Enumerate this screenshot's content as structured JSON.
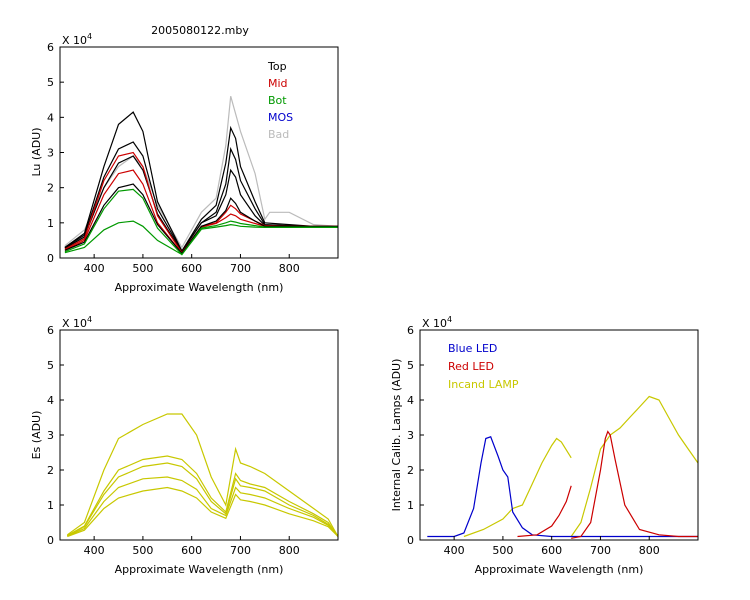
{
  "figure_title": "2005080122.mby",
  "chart_data": [
    {
      "type": "line",
      "id": "lu",
      "title": "",
      "xlabel": "Approximate Wavelength (nm)",
      "ylabel": "Lu (ADU)",
      "exponent_label": "X 10",
      "exponent": "4",
      "xlim": [
        330,
        900
      ],
      "ylim": [
        0,
        6
      ],
      "xticks": [
        400,
        500,
        600,
        700,
        800
      ],
      "yticks": [
        0,
        1,
        2,
        3,
        4,
        5,
        6
      ],
      "legend": [
        {
          "name": "Top",
          "color": "#000000"
        },
        {
          "name": "Mid",
          "color": "#cc0000"
        },
        {
          "name": "Bot",
          "color": "#009900"
        },
        {
          "name": "MOS",
          "color": "#0000cc"
        },
        {
          "name": "Bad",
          "color": "#bbbbbb"
        }
      ],
      "series": [
        {
          "name": "Bad",
          "color": "#bbbbbb",
          "x": [
            340,
            380,
            420,
            450,
            480,
            500,
            530,
            580,
            620,
            650,
            670,
            680,
            690,
            700,
            730,
            750,
            760,
            800,
            850,
            900
          ],
          "y": [
            0.35,
            0.8,
            2.0,
            2.6,
            2.9,
            2.6,
            1.5,
            0.3,
            1.3,
            1.7,
            3.2,
            4.6,
            4.1,
            3.6,
            2.4,
            1.1,
            1.3,
            1.3,
            0.95,
            0.9
          ]
        },
        {
          "name": "Top",
          "color": "#000000",
          "x": [
            340,
            380,
            420,
            450,
            480,
            500,
            530,
            580,
            620,
            650,
            670,
            680,
            690,
            700,
            730,
            750,
            800,
            850,
            900
          ],
          "y": [
            0.3,
            0.7,
            2.6,
            3.8,
            4.15,
            3.6,
            1.6,
            0.2,
            1.1,
            1.5,
            2.7,
            3.7,
            3.4,
            2.6,
            1.6,
            1.0,
            0.95,
            0.9,
            0.9
          ]
        },
        {
          "name": "Top",
          "color": "#000000",
          "x": [
            340,
            380,
            420,
            450,
            480,
            500,
            530,
            580,
            620,
            650,
            670,
            680,
            690,
            700,
            730,
            750,
            800,
            850,
            900
          ],
          "y": [
            0.3,
            0.65,
            2.3,
            3.1,
            3.3,
            2.9,
            1.4,
            0.2,
            1.0,
            1.3,
            2.1,
            3.1,
            2.8,
            2.2,
            1.4,
            0.95,
            0.92,
            0.9,
            0.9
          ]
        },
        {
          "name": "Top",
          "color": "#000000",
          "x": [
            340,
            380,
            420,
            450,
            480,
            500,
            530,
            580,
            620,
            650,
            670,
            680,
            690,
            700,
            730,
            750,
            800,
            850,
            900
          ],
          "y": [
            0.28,
            0.6,
            2.0,
            2.7,
            2.9,
            2.5,
            1.25,
            0.18,
            1.0,
            1.2,
            1.8,
            2.5,
            2.3,
            1.8,
            1.2,
            0.93,
            0.9,
            0.9,
            0.9
          ]
        },
        {
          "name": "Mid",
          "color": "#cc0000",
          "x": [
            340,
            380,
            420,
            450,
            480,
            500,
            530,
            580,
            620,
            650,
            670,
            680,
            690,
            700,
            730,
            750,
            800,
            850,
            900
          ],
          "y": [
            0.25,
            0.55,
            2.2,
            2.9,
            3.0,
            2.6,
            1.2,
            0.15,
            0.9,
            1.0,
            1.3,
            1.5,
            1.4,
            1.25,
            1.05,
            0.92,
            0.9,
            0.9,
            0.9
          ]
        },
        {
          "name": "Mid",
          "color": "#cc0000",
          "x": [
            340,
            380,
            420,
            450,
            480,
            500,
            530,
            580,
            620,
            650,
            670,
            680,
            690,
            700,
            730,
            750,
            800,
            850,
            900
          ],
          "y": [
            0.22,
            0.5,
            1.8,
            2.4,
            2.5,
            2.1,
            1.0,
            0.13,
            0.88,
            0.98,
            1.15,
            1.25,
            1.2,
            1.1,
            0.98,
            0.9,
            0.9,
            0.9,
            0.9
          ]
        },
        {
          "name": "Top",
          "color": "#000000",
          "x": [
            340,
            380,
            420,
            450,
            480,
            500,
            530,
            580,
            620,
            650,
            670,
            680,
            690,
            700,
            730,
            750,
            800,
            850,
            900
          ],
          "y": [
            0.22,
            0.45,
            1.5,
            2.0,
            2.1,
            1.8,
            0.95,
            0.13,
            0.9,
            1.05,
            1.35,
            1.7,
            1.55,
            1.3,
            1.05,
            0.9,
            0.9,
            0.9,
            0.9
          ]
        },
        {
          "name": "Bot",
          "color": "#009900",
          "x": [
            340,
            380,
            420,
            450,
            480,
            500,
            530,
            580,
            620,
            650,
            670,
            680,
            690,
            700,
            730,
            750,
            800,
            850,
            900
          ],
          "y": [
            0.18,
            0.4,
            1.4,
            1.9,
            1.95,
            1.7,
            0.85,
            0.1,
            0.85,
            0.92,
            1.0,
            1.05,
            1.02,
            0.98,
            0.92,
            0.88,
            0.88,
            0.88,
            0.88
          ]
        },
        {
          "name": "Bot",
          "color": "#009900",
          "x": [
            340,
            380,
            420,
            450,
            480,
            500,
            530,
            580,
            620,
            650,
            670,
            680,
            690,
            700,
            730,
            750,
            800,
            850,
            900
          ],
          "y": [
            0.15,
            0.3,
            0.8,
            1.0,
            1.05,
            0.9,
            0.5,
            0.1,
            0.82,
            0.88,
            0.92,
            0.95,
            0.93,
            0.9,
            0.88,
            0.87,
            0.87,
            0.87,
            0.87
          ]
        }
      ]
    },
    {
      "type": "line",
      "id": "es",
      "title": "",
      "xlabel": "Approximate Wavelength (nm)",
      "ylabel": "Es (ADU)",
      "exponent_label": "X 10",
      "exponent": "4",
      "xlim": [
        330,
        900
      ],
      "ylim": [
        0,
        6
      ],
      "xticks": [
        400,
        500,
        600,
        700,
        800
      ],
      "yticks": [
        0,
        1,
        2,
        3,
        4,
        5,
        6
      ],
      "series": [
        {
          "color": "#c8c800",
          "x": [
            345,
            380,
            420,
            450,
            500,
            550,
            580,
            610,
            640,
            670,
            690,
            700,
            720,
            750,
            800,
            850,
            880,
            900
          ],
          "y": [
            0.15,
            0.5,
            2.0,
            2.9,
            3.3,
            3.6,
            3.6,
            3.0,
            1.8,
            1.0,
            2.6,
            2.2,
            2.1,
            1.9,
            1.4,
            0.9,
            0.6,
            0.1
          ]
        },
        {
          "color": "#c8c800",
          "x": [
            345,
            380,
            420,
            450,
            500,
            550,
            580,
            610,
            640,
            670,
            690,
            700,
            720,
            750,
            800,
            850,
            880,
            900
          ],
          "y": [
            0.13,
            0.4,
            1.4,
            2.0,
            2.3,
            2.4,
            2.3,
            1.9,
            1.2,
            0.8,
            1.9,
            1.7,
            1.6,
            1.5,
            1.1,
            0.75,
            0.5,
            0.1
          ]
        },
        {
          "color": "#c8c800",
          "x": [
            345,
            380,
            420,
            450,
            500,
            550,
            580,
            610,
            640,
            670,
            690,
            700,
            720,
            750,
            800,
            850,
            880,
            900
          ],
          "y": [
            0.12,
            0.38,
            1.3,
            1.8,
            2.1,
            2.2,
            2.1,
            1.75,
            1.1,
            0.75,
            1.75,
            1.55,
            1.5,
            1.4,
            1.0,
            0.7,
            0.45,
            0.1
          ]
        },
        {
          "color": "#c8c800",
          "x": [
            345,
            380,
            420,
            450,
            500,
            550,
            580,
            610,
            640,
            670,
            690,
            700,
            720,
            750,
            800,
            850,
            880,
            900
          ],
          "y": [
            0.11,
            0.33,
            1.1,
            1.5,
            1.75,
            1.8,
            1.7,
            1.45,
            0.9,
            0.7,
            1.5,
            1.35,
            1.3,
            1.2,
            0.9,
            0.65,
            0.42,
            0.1
          ]
        },
        {
          "color": "#c8c800",
          "x": [
            345,
            380,
            420,
            450,
            500,
            550,
            580,
            610,
            640,
            670,
            690,
            700,
            720,
            750,
            800,
            850,
            880,
            900
          ],
          "y": [
            0.1,
            0.28,
            0.9,
            1.2,
            1.4,
            1.5,
            1.4,
            1.2,
            0.8,
            0.62,
            1.3,
            1.15,
            1.1,
            1.0,
            0.75,
            0.55,
            0.38,
            0.1
          ]
        }
      ]
    },
    {
      "type": "line",
      "id": "icl",
      "title": "",
      "xlabel": "Approximate Wavelength (nm)",
      "ylabel": "Internal Calib. Lamps (ADU)",
      "exponent_label": "X 10",
      "exponent": "4",
      "xlim": [
        330,
        900
      ],
      "ylim": [
        0,
        6
      ],
      "xticks": [
        400,
        500,
        600,
        700,
        800
      ],
      "yticks": [
        0,
        1,
        2,
        3,
        4,
        5,
        6
      ],
      "legend": [
        {
          "name": "Blue LED",
          "color": "#0000cc"
        },
        {
          "name": "Red LED",
          "color": "#cc0000"
        },
        {
          "name": "Incand LAMP",
          "color": "#c8c800"
        }
      ],
      "series": [
        {
          "name": "Incand LAMP",
          "color": "#c8c800",
          "x": [
            420,
            460,
            500,
            520,
            540,
            560,
            580,
            600,
            610,
            620,
            640
          ],
          "y": [
            0.1,
            0.3,
            0.6,
            0.9,
            1.0,
            1.6,
            2.2,
            2.7,
            2.9,
            2.8,
            2.35
          ]
        },
        {
          "name": "Incand LAMP",
          "color": "#c8c800",
          "x": [
            640,
            660,
            680,
            700,
            720,
            740,
            760,
            780,
            800,
            820,
            840,
            860,
            880,
            900
          ],
          "y": [
            0.1,
            0.5,
            1.5,
            2.6,
            3.0,
            3.2,
            3.5,
            3.8,
            4.1,
            4.0,
            3.5,
            3.0,
            2.6,
            2.2
          ]
        },
        {
          "name": "Blue LED",
          "color": "#0000cc",
          "x": [
            345,
            400,
            420,
            440,
            455,
            465,
            475,
            490,
            500,
            510,
            520,
            540,
            560,
            600,
            700,
            900
          ],
          "y": [
            0.1,
            0.1,
            0.2,
            0.9,
            2.2,
            2.9,
            2.95,
            2.4,
            2.0,
            1.8,
            0.8,
            0.35,
            0.15,
            0.1,
            0.1,
            0.1
          ]
        },
        {
          "name": "Red LED",
          "color": "#cc0000",
          "x": [
            530,
            570,
            600,
            615,
            630,
            640
          ],
          "y": [
            0.1,
            0.15,
            0.4,
            0.7,
            1.1,
            1.55
          ]
        },
        {
          "name": "Red LED",
          "color": "#cc0000",
          "x": [
            640,
            660,
            680,
            700,
            710,
            715,
            720,
            730,
            750,
            780,
            820,
            860,
            900
          ],
          "y": [
            0.05,
            0.1,
            0.5,
            2.0,
            2.9,
            3.1,
            3.0,
            2.3,
            1.0,
            0.3,
            0.15,
            0.1,
            0.1
          ]
        }
      ]
    }
  ]
}
